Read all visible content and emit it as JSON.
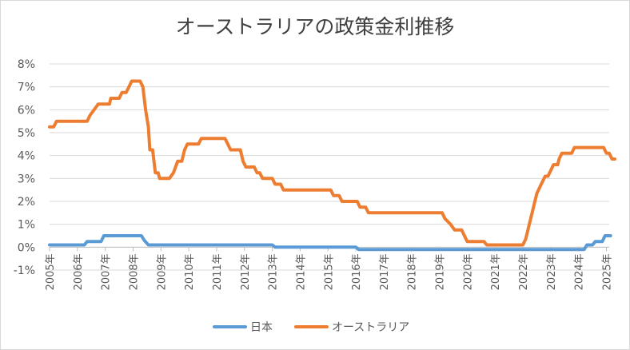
{
  "chart_data": {
    "type": "line",
    "title": "オーストラリアの政策金利推移",
    "ylim": [
      -1,
      8
    ],
    "y_ticks": [
      {
        "value": 8,
        "label": "8%"
      },
      {
        "value": 7,
        "label": "7%"
      },
      {
        "value": 6,
        "label": "6%"
      },
      {
        "value": 5,
        "label": "5%"
      },
      {
        "value": 4,
        "label": "4%"
      },
      {
        "value": 3,
        "label": "3%"
      },
      {
        "value": 2,
        "label": "2%"
      },
      {
        "value": 1,
        "label": "1%"
      },
      {
        "value": 0,
        "label": "0%"
      },
      {
        "value": -1,
        "label": "-1%"
      }
    ],
    "xlim": [
      2005,
      2025.1
    ],
    "x_ticks": [
      {
        "value": 2005,
        "label": "2005年"
      },
      {
        "value": 2006,
        "label": "2006年"
      },
      {
        "value": 2007,
        "label": "2007年"
      },
      {
        "value": 2008,
        "label": "2008年"
      },
      {
        "value": 2009,
        "label": "2009年"
      },
      {
        "value": 2010,
        "label": "2010年"
      },
      {
        "value": 2011,
        "label": "2011年"
      },
      {
        "value": 2012,
        "label": "2012年"
      },
      {
        "value": 2013,
        "label": "2013年"
      },
      {
        "value": 2014,
        "label": "2014年"
      },
      {
        "value": 2015,
        "label": "2015年"
      },
      {
        "value": 2016,
        "label": "2016年"
      },
      {
        "value": 2017,
        "label": "2017年"
      },
      {
        "value": 2018,
        "label": "2018年"
      },
      {
        "value": 2019,
        "label": "2019年"
      },
      {
        "value": 2020,
        "label": "2020年"
      },
      {
        "value": 2021,
        "label": "2021年"
      },
      {
        "value": 2022,
        "label": "2022年"
      },
      {
        "value": 2023,
        "label": "2023年"
      },
      {
        "value": 2024,
        "label": "2024年"
      },
      {
        "value": 2025,
        "label": "2025年"
      }
    ],
    "series": [
      {
        "name": "日本",
        "color": "#5b9bd5",
        "points": [
          [
            2005.0,
            0.1
          ],
          [
            2006.25,
            0.1
          ],
          [
            2006.35,
            0.25
          ],
          [
            2006.85,
            0.25
          ],
          [
            2006.95,
            0.5
          ],
          [
            2008.3,
            0.5
          ],
          [
            2008.4,
            0.3
          ],
          [
            2008.55,
            0.1
          ],
          [
            2013.0,
            0.1
          ],
          [
            2013.1,
            0.0
          ],
          [
            2016.0,
            0.0
          ],
          [
            2016.1,
            -0.1
          ],
          [
            2024.2,
            -0.1
          ],
          [
            2024.3,
            0.1
          ],
          [
            2024.5,
            0.1
          ],
          [
            2024.6,
            0.25
          ],
          [
            2024.85,
            0.25
          ],
          [
            2024.95,
            0.5
          ],
          [
            2025.15,
            0.5
          ]
        ]
      },
      {
        "name": "オーストラリア",
        "color": "#ed7d31",
        "points": [
          [
            2005.0,
            5.25
          ],
          [
            2005.15,
            5.25
          ],
          [
            2005.25,
            5.5
          ],
          [
            2006.35,
            5.5
          ],
          [
            2006.45,
            5.75
          ],
          [
            2006.6,
            6.0
          ],
          [
            2006.75,
            6.25
          ],
          [
            2007.05,
            6.25
          ],
          [
            2007.15,
            6.25
          ],
          [
            2007.2,
            6.5
          ],
          [
            2007.5,
            6.5
          ],
          [
            2007.6,
            6.75
          ],
          [
            2007.75,
            6.75
          ],
          [
            2007.85,
            7.0
          ],
          [
            2007.95,
            7.25
          ],
          [
            2008.25,
            7.25
          ],
          [
            2008.35,
            7.0
          ],
          [
            2008.45,
            6.0
          ],
          [
            2008.55,
            5.25
          ],
          [
            2008.6,
            4.25
          ],
          [
            2008.7,
            4.25
          ],
          [
            2008.8,
            3.25
          ],
          [
            2008.9,
            3.25
          ],
          [
            2008.95,
            3.0
          ],
          [
            2009.3,
            3.0
          ],
          [
            2009.45,
            3.25
          ],
          [
            2009.6,
            3.75
          ],
          [
            2009.75,
            3.75
          ],
          [
            2009.85,
            4.25
          ],
          [
            2009.95,
            4.5
          ],
          [
            2010.35,
            4.5
          ],
          [
            2010.45,
            4.75
          ],
          [
            2011.2,
            4.75
          ],
          [
            2011.3,
            4.75
          ],
          [
            2011.4,
            4.5
          ],
          [
            2011.5,
            4.25
          ],
          [
            2011.85,
            4.25
          ],
          [
            2011.95,
            3.75
          ],
          [
            2012.05,
            3.5
          ],
          [
            2012.35,
            3.5
          ],
          [
            2012.45,
            3.25
          ],
          [
            2012.55,
            3.25
          ],
          [
            2012.65,
            3.0
          ],
          [
            2012.9,
            3.0
          ],
          [
            2013.0,
            3.0
          ],
          [
            2013.1,
            2.75
          ],
          [
            2013.3,
            2.75
          ],
          [
            2013.4,
            2.5
          ],
          [
            2015.1,
            2.5
          ],
          [
            2015.2,
            2.25
          ],
          [
            2015.4,
            2.25
          ],
          [
            2015.5,
            2.0
          ],
          [
            2016.05,
            2.0
          ],
          [
            2016.15,
            1.75
          ],
          [
            2016.35,
            1.75
          ],
          [
            2016.45,
            1.5
          ],
          [
            2019.1,
            1.5
          ],
          [
            2019.2,
            1.25
          ],
          [
            2019.4,
            1.0
          ],
          [
            2019.55,
            0.75
          ],
          [
            2019.8,
            0.75
          ],
          [
            2019.9,
            0.5
          ],
          [
            2020.0,
            0.25
          ],
          [
            2020.6,
            0.25
          ],
          [
            2020.7,
            0.1
          ],
          [
            2022.0,
            0.1
          ],
          [
            2022.1,
            0.35
          ],
          [
            2022.2,
            0.85
          ],
          [
            2022.3,
            1.35
          ],
          [
            2022.4,
            1.85
          ],
          [
            2022.5,
            2.35
          ],
          [
            2022.6,
            2.6
          ],
          [
            2022.7,
            2.85
          ],
          [
            2022.8,
            3.1
          ],
          [
            2022.9,
            3.1
          ],
          [
            2023.0,
            3.35
          ],
          [
            2023.1,
            3.6
          ],
          [
            2023.25,
            3.6
          ],
          [
            2023.3,
            3.85
          ],
          [
            2023.4,
            4.1
          ],
          [
            2023.75,
            4.1
          ],
          [
            2023.85,
            4.35
          ],
          [
            2024.9,
            4.35
          ],
          [
            2025.0,
            4.1
          ],
          [
            2025.1,
            4.1
          ],
          [
            2025.2,
            3.85
          ],
          [
            2025.3,
            3.85
          ]
        ]
      }
    ],
    "legend": {
      "position": "bottom"
    }
  }
}
